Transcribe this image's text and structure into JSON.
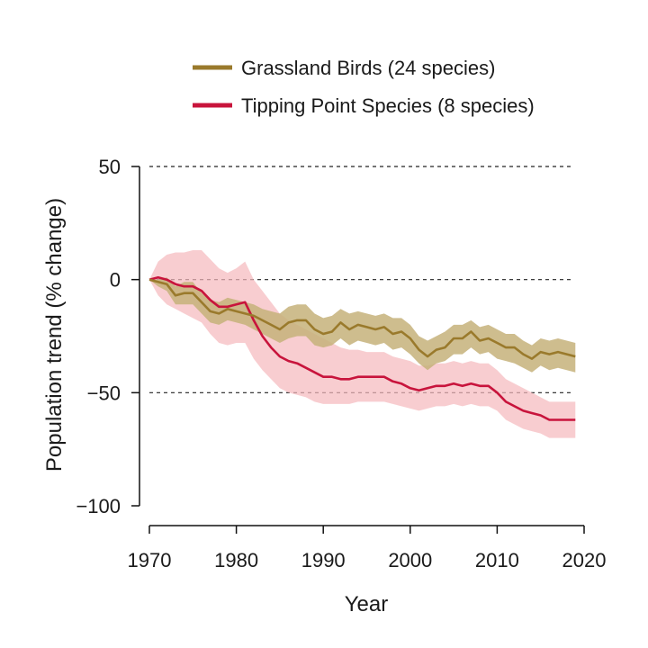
{
  "chart_data": {
    "type": "line",
    "title": "",
    "xlabel": "Year",
    "ylabel": "Population trend (% change)",
    "xlim": [
      1970,
      2020
    ],
    "ylim": [
      -100,
      50
    ],
    "x_ticks": [
      1970,
      1980,
      1990,
      2000,
      2010,
      2020
    ],
    "y_ticks": [
      50,
      0,
      -50,
      -100
    ],
    "y_tick_labels": [
      "50",
      "0",
      "−50",
      "−100"
    ],
    "grid_dashed_at": [
      50,
      0,
      -50
    ],
    "legend_position": "top",
    "series": [
      {
        "name": "Grassland Birds (24 species)",
        "color": "#9a7a2c",
        "band_color": "#c6b27a",
        "x": [
          1970,
          1971,
          1972,
          1973,
          1974,
          1975,
          1976,
          1977,
          1978,
          1979,
          1980,
          1981,
          1982,
          1983,
          1984,
          1985,
          1986,
          1987,
          1988,
          1989,
          1990,
          1991,
          1992,
          1993,
          1994,
          1995,
          1996,
          1997,
          1998,
          1999,
          2000,
          2001,
          2002,
          2003,
          2004,
          2005,
          2006,
          2007,
          2008,
          2009,
          2010,
          2011,
          2012,
          2013,
          2014,
          2015,
          2016,
          2017,
          2018,
          2019
        ],
        "values": [
          0,
          -1,
          -2,
          -7,
          -6,
          -6,
          -10,
          -14,
          -15,
          -13,
          -14,
          -15,
          -16,
          -18,
          -20,
          -22,
          -19,
          -18,
          -18,
          -22,
          -24,
          -23,
          -19,
          -22,
          -20,
          -21,
          -22,
          -21,
          -24,
          -23,
          -26,
          -31,
          -34,
          -31,
          -30,
          -26,
          -26,
          -23,
          -27,
          -26,
          -28,
          -30,
          -30,
          -33,
          -35,
          -32,
          -33,
          -32,
          -33,
          -34
        ],
        "upper": [
          0,
          0,
          1,
          -3,
          -1,
          -1,
          -6,
          -9,
          -10,
          -8,
          -9,
          -10,
          -11,
          -13,
          -14,
          -15,
          -12,
          -11,
          -11,
          -15,
          -17,
          -16,
          -13,
          -15,
          -14,
          -15,
          -16,
          -15,
          -17,
          -17,
          -20,
          -25,
          -27,
          -25,
          -23,
          -20,
          -20,
          -18,
          -21,
          -20,
          -22,
          -24,
          -24,
          -27,
          -29,
          -26,
          -27,
          -26,
          -27,
          -28
        ],
        "lower": [
          0,
          -3,
          -5,
          -11,
          -11,
          -11,
          -15,
          -19,
          -20,
          -18,
          -19,
          -20,
          -22,
          -24,
          -26,
          -28,
          -26,
          -25,
          -25,
          -29,
          -30,
          -29,
          -26,
          -29,
          -27,
          -28,
          -29,
          -28,
          -31,
          -30,
          -33,
          -37,
          -40,
          -37,
          -36,
          -33,
          -33,
          -30,
          -33,
          -32,
          -35,
          -36,
          -37,
          -39,
          -41,
          -38,
          -40,
          -39,
          -40,
          -41
        ]
      },
      {
        "name": "Tipping Point Species (8 species)",
        "color": "#c8143c",
        "band_color": "#f5b8bc",
        "x": [
          1970,
          1971,
          1972,
          1973,
          1974,
          1975,
          1976,
          1977,
          1978,
          1979,
          1980,
          1981,
          1982,
          1983,
          1984,
          1985,
          1986,
          1987,
          1988,
          1989,
          1990,
          1991,
          1992,
          1993,
          1994,
          1995,
          1996,
          1997,
          1998,
          1999,
          2000,
          2001,
          2002,
          2003,
          2004,
          2005,
          2006,
          2007,
          2008,
          2009,
          2010,
          2011,
          2012,
          2013,
          2014,
          2015,
          2016,
          2017,
          2018,
          2019
        ],
        "values": [
          0,
          1,
          0,
          -2,
          -3,
          -3,
          -5,
          -9,
          -12,
          -12,
          -11,
          -10,
          -18,
          -25,
          -30,
          -34,
          -36,
          -37,
          -39,
          -41,
          -43,
          -43,
          -44,
          -44,
          -43,
          -43,
          -43,
          -43,
          -45,
          -46,
          -48,
          -49,
          -48,
          -47,
          -47,
          -46,
          -47,
          -46,
          -47,
          -47,
          -50,
          -54,
          -56,
          -58,
          -59,
          -60,
          -62,
          -62,
          -62,
          -62
        ],
        "upper": [
          0,
          8,
          11,
          12,
          12,
          13,
          13,
          9,
          5,
          3,
          5,
          8,
          0,
          -5,
          -10,
          -15,
          -18,
          -20,
          -22,
          -24,
          -26,
          -28,
          -30,
          -31,
          -31,
          -32,
          -32,
          -32,
          -34,
          -35,
          -36,
          -38,
          -38,
          -37,
          -37,
          -36,
          -37,
          -36,
          -37,
          -37,
          -40,
          -44,
          -46,
          -48,
          -50,
          -52,
          -54,
          -54,
          -54,
          -54
        ],
        "lower": [
          0,
          -7,
          -11,
          -13,
          -15,
          -17,
          -19,
          -24,
          -28,
          -29,
          -28,
          -28,
          -35,
          -40,
          -44,
          -48,
          -50,
          -51,
          -52,
          -54,
          -55,
          -55,
          -55,
          -55,
          -54,
          -54,
          -54,
          -54,
          -55,
          -56,
          -57,
          -58,
          -57,
          -56,
          -56,
          -55,
          -56,
          -55,
          -56,
          -56,
          -58,
          -62,
          -64,
          -66,
          -67,
          -68,
          -70,
          -70,
          -70,
          -70
        ]
      }
    ]
  }
}
